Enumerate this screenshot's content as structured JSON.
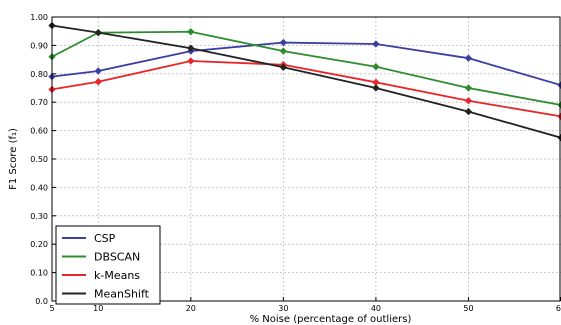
{
  "chart_data": {
    "type": "line",
    "title": "",
    "xlabel": "% Noise (percentage of outliers)",
    "ylabel": "F1 Score (f₁)",
    "x": [
      5,
      10,
      20,
      30,
      40,
      50,
      60
    ],
    "x_tick_labels": [
      "5",
      "10",
      "20",
      "30",
      "40",
      "50",
      "60"
    ],
    "xlim": [
      5,
      60
    ],
    "ylim": [
      0.0,
      1.0
    ],
    "y_ticks": [
      0.0,
      0.1,
      0.2,
      0.3,
      0.4,
      0.5,
      0.6,
      0.7,
      0.8,
      0.9,
      1.0
    ],
    "y_tick_labels": [
      "0.0",
      "0.10",
      "0.20",
      "0.30",
      "0.40",
      "0.50",
      "0.60",
      "0.70",
      "0.80",
      "0.90",
      "1.00"
    ],
    "grid": true,
    "legend_position": "lower-left",
    "series": [
      {
        "name": "CSP",
        "color": "#3b3ea3",
        "values": [
          0.79,
          0.81,
          0.88,
          0.91,
          0.905,
          0.855,
          0.76
        ]
      },
      {
        "name": "DBSCAN",
        "color": "#2e8b2e",
        "values": [
          0.86,
          0.945,
          0.948,
          0.88,
          0.825,
          0.75,
          0.69
        ]
      },
      {
        "name": "k-Means",
        "color": "#e8262a",
        "values": [
          0.745,
          0.772,
          0.845,
          0.832,
          0.77,
          0.705,
          0.65
        ]
      },
      {
        "name": "MeanShift",
        "color": "#222222",
        "values": [
          0.97,
          0.945,
          0.89,
          0.823,
          0.75,
          0.667,
          0.575
        ]
      }
    ]
  }
}
